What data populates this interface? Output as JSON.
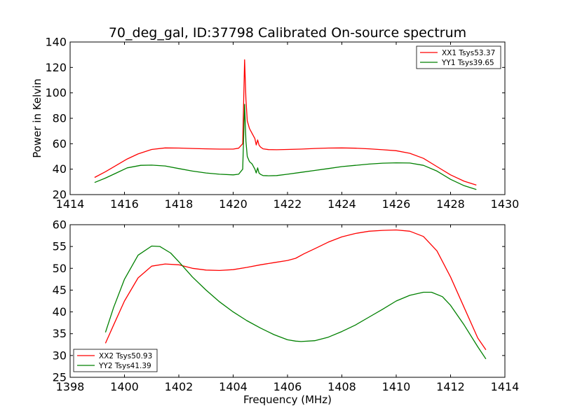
{
  "figure": {
    "title": "70_deg_gal, ID:37798 Calibrated On-source spectrum",
    "xlabel": "Frequency (MHz)",
    "ylabel": "Power in Kelvin"
  },
  "chart_data": [
    {
      "type": "line",
      "title": "70_deg_gal, ID:37798 Calibrated On-source spectrum",
      "xlabel": "",
      "ylabel": "Power in Kelvin",
      "xlim": [
        1414,
        1430
      ],
      "ylim": [
        20,
        140
      ],
      "xticks": [
        1414,
        1416,
        1418,
        1420,
        1422,
        1424,
        1426,
        1428,
        1430
      ],
      "yticks": [
        20,
        40,
        60,
        80,
        100,
        120,
        140
      ],
      "grid": false,
      "legend_position": "top-right",
      "series": [
        {
          "name": "XX1 Tsys53.37",
          "color": "#ff0000",
          "x": [
            1414.9,
            1415.3,
            1415.7,
            1416.1,
            1416.5,
            1417.0,
            1417.5,
            1418.0,
            1418.5,
            1419.0,
            1419.5,
            1420.0,
            1420.2,
            1420.35,
            1420.42,
            1420.47,
            1420.52,
            1420.6,
            1420.7,
            1420.8,
            1420.85,
            1420.9,
            1420.95,
            1421.0,
            1421.1,
            1421.3,
            1421.6,
            1422.0,
            1422.5,
            1423.0,
            1423.5,
            1424.0,
            1424.5,
            1425.0,
            1425.5,
            1426.0,
            1426.5,
            1427.0,
            1427.5,
            1428.0,
            1428.5,
            1428.95
          ],
          "y": [
            33.5,
            38,
            43,
            48,
            52,
            55.5,
            56.7,
            56.6,
            56.3,
            56,
            55.8,
            55.8,
            56.5,
            60,
            126,
            95,
            78,
            72,
            68,
            64,
            59,
            63,
            59,
            57.5,
            56,
            55.4,
            55.3,
            55.5,
            55.8,
            56.3,
            56.6,
            56.7,
            56.5,
            56,
            55.3,
            54.5,
            52.5,
            48.5,
            42,
            35.5,
            30.5,
            27.5
          ]
        },
        {
          "name": "YY1 Tsys39.65",
          "color": "#008000",
          "x": [
            1414.9,
            1415.3,
            1415.7,
            1416.1,
            1416.6,
            1417.0,
            1417.5,
            1418.0,
            1418.5,
            1419.0,
            1419.5,
            1420.0,
            1420.2,
            1420.35,
            1420.42,
            1420.47,
            1420.52,
            1420.6,
            1420.7,
            1420.8,
            1420.85,
            1420.9,
            1420.95,
            1421.0,
            1421.1,
            1421.3,
            1421.6,
            1422.0,
            1422.5,
            1423.0,
            1423.5,
            1424.0,
            1424.5,
            1425.0,
            1425.5,
            1426.0,
            1426.5,
            1427.0,
            1427.5,
            1428.0,
            1428.5,
            1428.95
          ],
          "y": [
            29.5,
            33,
            37,
            41,
            43,
            43.2,
            42.5,
            40.5,
            38.5,
            37,
            36,
            35.5,
            36,
            40,
            91,
            62,
            50,
            46,
            44,
            40,
            37,
            41,
            37,
            36,
            35,
            34.8,
            35,
            36,
            37.5,
            39,
            40.5,
            42,
            43,
            44,
            44.7,
            45,
            44.8,
            43,
            38.5,
            32,
            27,
            24
          ]
        }
      ]
    },
    {
      "type": "line",
      "title": "",
      "xlabel": "Frequency (MHz)",
      "ylabel": "",
      "xlim": [
        1398,
        1414
      ],
      "ylim": [
        25,
        60
      ],
      "xticks": [
        1398,
        1400,
        1402,
        1404,
        1406,
        1408,
        1410,
        1412,
        1414
      ],
      "yticks": [
        25,
        30,
        35,
        40,
        45,
        50,
        55,
        60
      ],
      "grid": false,
      "legend_position": "bottom-left",
      "series": [
        {
          "name": "XX2 Tsys50.93",
          "color": "#ff0000",
          "x": [
            1399.3,
            1399.6,
            1400.0,
            1400.5,
            1401.0,
            1401.5,
            1402.0,
            1402.5,
            1403.0,
            1403.5,
            1404.0,
            1404.5,
            1405.0,
            1405.5,
            1406.0,
            1406.3,
            1406.6,
            1407.0,
            1407.5,
            1408.0,
            1408.5,
            1409.0,
            1409.5,
            1410.0,
            1410.5,
            1411.0,
            1411.5,
            1412.0,
            1412.5,
            1413.0,
            1413.3
          ],
          "y": [
            32.8,
            37,
            42.5,
            47.8,
            50.5,
            51,
            50.8,
            50,
            49.6,
            49.5,
            49.7,
            50.2,
            50.8,
            51.3,
            51.8,
            52.3,
            53.3,
            54.5,
            56,
            57.2,
            58,
            58.5,
            58.7,
            58.8,
            58.5,
            57.3,
            54,
            48,
            41,
            34,
            31.3
          ]
        },
        {
          "name": "YY2 Tsys41.39",
          "color": "#008000",
          "x": [
            1399.3,
            1399.6,
            1400.0,
            1400.5,
            1401.0,
            1401.3,
            1401.7,
            1402.0,
            1402.5,
            1403.0,
            1403.5,
            1404.0,
            1404.5,
            1405.0,
            1405.5,
            1406.0,
            1406.3,
            1406.5,
            1407.0,
            1407.5,
            1408.0,
            1408.5,
            1409.0,
            1409.5,
            1410.0,
            1410.5,
            1411.0,
            1411.3,
            1411.7,
            1412.0,
            1412.5,
            1413.0,
            1413.3
          ],
          "y": [
            35.3,
            41,
            47.5,
            53,
            55.1,
            55,
            53.5,
            51.5,
            48,
            45,
            42.3,
            40,
            38,
            36.3,
            34.8,
            33.6,
            33.3,
            33.2,
            33.4,
            34.2,
            35.5,
            37,
            38.8,
            40.6,
            42.5,
            43.8,
            44.5,
            44.5,
            43.5,
            41.5,
            37,
            32,
            29.2
          ]
        }
      ]
    }
  ]
}
